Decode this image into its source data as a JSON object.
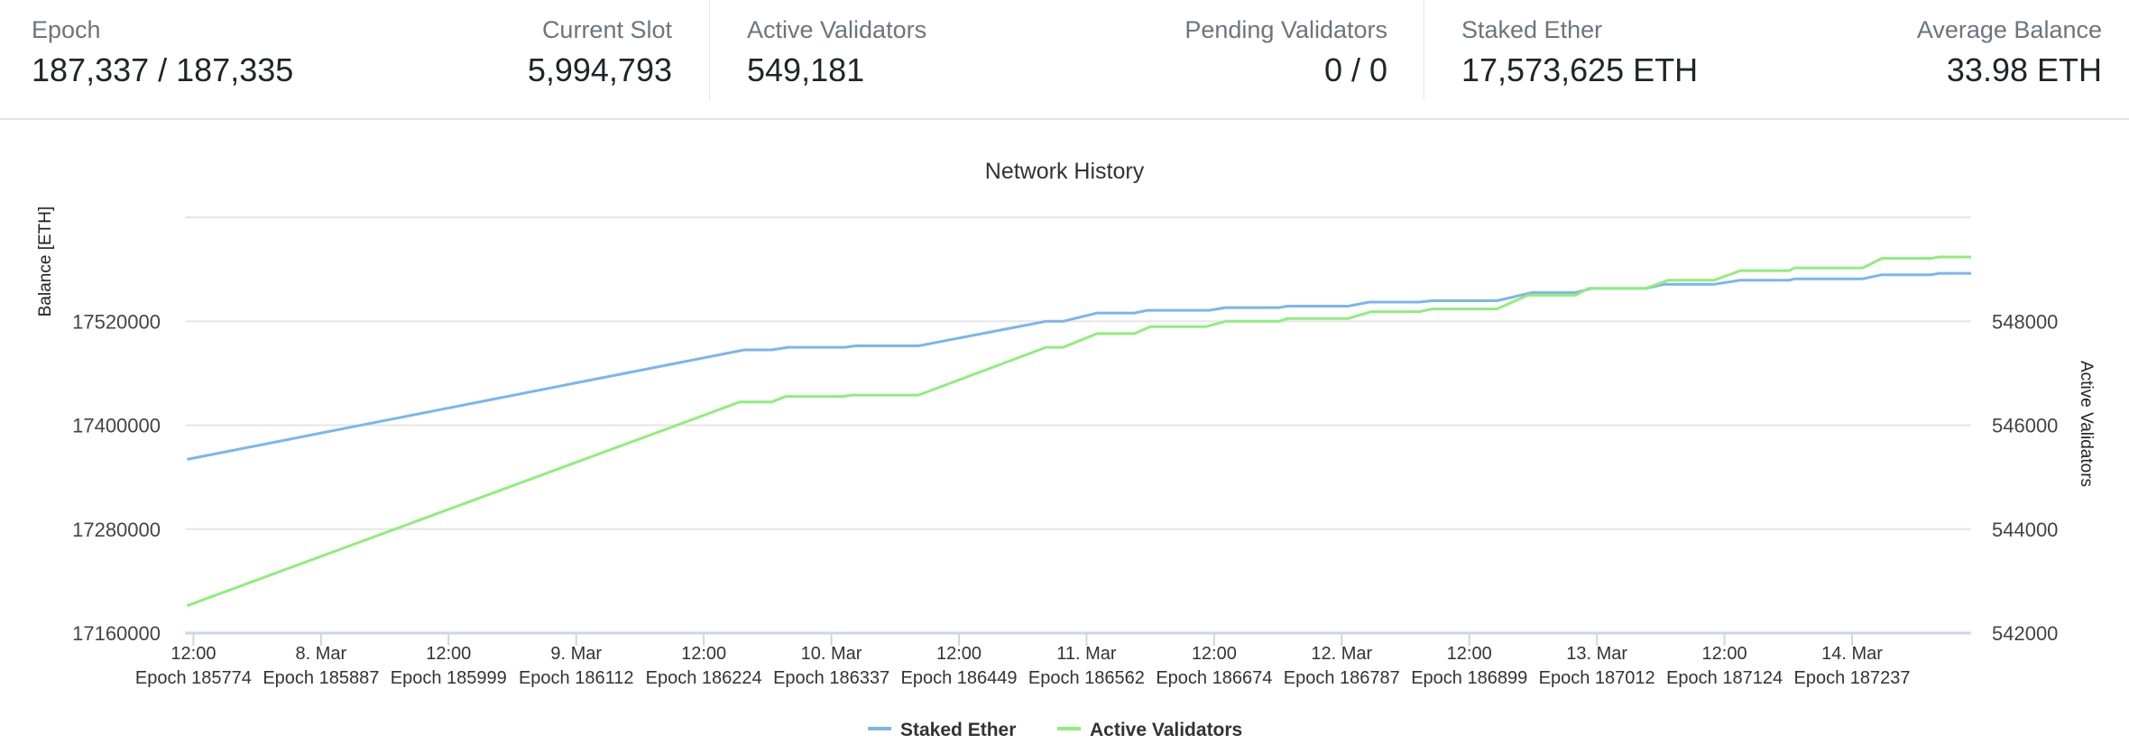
{
  "stats": {
    "epoch": {
      "label": "Epoch",
      "value": "187,337 / 187,335"
    },
    "current_slot": {
      "label": "Current Slot",
      "value": "5,994,793"
    },
    "active_validators": {
      "label": "Active Validators",
      "value": "549,181"
    },
    "pending_validators": {
      "label": "Pending Validators",
      "value": "0 / 0"
    },
    "staked_ether": {
      "label": "Staked Ether",
      "value": "17,573,625 ETH"
    },
    "average_balance": {
      "label": "Average Balance",
      "value": "33.98 ETH"
    }
  },
  "chart_data": {
    "type": "line",
    "title": "Network History",
    "x_unit": "hours since 7 Mar 00:00",
    "xlim": [
      11.2,
      179.2
    ],
    "x_ticks": [
      {
        "t": 12,
        "label": "12:00",
        "epoch": "Epoch 185774"
      },
      {
        "t": 24,
        "label": "8. Mar",
        "epoch": "Epoch 185887"
      },
      {
        "t": 36,
        "label": "12:00",
        "epoch": "Epoch 185999"
      },
      {
        "t": 48,
        "label": "9. Mar",
        "epoch": "Epoch 186112"
      },
      {
        "t": 60,
        "label": "12:00",
        "epoch": "Epoch 186224"
      },
      {
        "t": 72,
        "label": "10. Mar",
        "epoch": "Epoch 186337"
      },
      {
        "t": 84,
        "label": "12:00",
        "epoch": "Epoch 186449"
      },
      {
        "t": 96,
        "label": "11. Mar",
        "epoch": "Epoch 186562"
      },
      {
        "t": 108,
        "label": "12:00",
        "epoch": "Epoch 186674"
      },
      {
        "t": 120,
        "label": "12. Mar",
        "epoch": "Epoch 186787"
      },
      {
        "t": 132,
        "label": "12:00",
        "epoch": "Epoch 186899"
      },
      {
        "t": 144,
        "label": "13. Mar",
        "epoch": "Epoch 187012"
      },
      {
        "t": 156,
        "label": "12:00",
        "epoch": "Epoch 187124"
      },
      {
        "t": 168,
        "label": "14. Mar",
        "epoch": "Epoch 187237"
      }
    ],
    "y_left": {
      "label": "Balance [ETH]",
      "ylim": [
        17160000,
        17640000
      ],
      "ticks": [
        17160000,
        17280000,
        17400000,
        17520000
      ]
    },
    "y_right": {
      "label": "Active Validators",
      "ylim": [
        542000,
        550000
      ],
      "ticks": [
        542000,
        544000,
        546000,
        548000
      ]
    },
    "grid": true,
    "legend_position": "bottom-center",
    "series": [
      {
        "name": "Staked Ether",
        "axis": "left",
        "color": "#7cb5ec",
        "points": [
          [
            11.4,
            17360500
          ],
          [
            63.8,
            17486900
          ],
          [
            66.4,
            17486900
          ],
          [
            67.9,
            17490000
          ],
          [
            73.3,
            17490000
          ],
          [
            74.3,
            17491600
          ],
          [
            80.2,
            17491600
          ],
          [
            92.2,
            17520000
          ],
          [
            93.8,
            17520000
          ],
          [
            97.0,
            17529500
          ],
          [
            100.5,
            17529500
          ],
          [
            101.7,
            17532600
          ],
          [
            107.5,
            17532600
          ],
          [
            109.1,
            17535800
          ],
          [
            114.1,
            17535800
          ],
          [
            114.9,
            17537400
          ],
          [
            120.6,
            17537400
          ],
          [
            122.6,
            17542100
          ],
          [
            127.3,
            17542100
          ],
          [
            128.5,
            17543700
          ],
          [
            134.6,
            17543700
          ],
          [
            137.9,
            17553200
          ],
          [
            142.0,
            17553200
          ],
          [
            143.5,
            17557900
          ],
          [
            148.6,
            17557900
          ],
          [
            150.3,
            17562600
          ],
          [
            155.0,
            17562600
          ],
          [
            157.5,
            17567400
          ],
          [
            162.1,
            17567400
          ],
          [
            162.6,
            17569000
          ],
          [
            169.0,
            17569000
          ],
          [
            170.8,
            17573700
          ],
          [
            175.4,
            17573700
          ],
          [
            176.2,
            17575300
          ],
          [
            179.2,
            17575300
          ]
        ]
      },
      {
        "name": "Active Validators",
        "axis": "right",
        "color": "#90ed7d",
        "points": [
          [
            11.4,
            542526
          ],
          [
            63.4,
            546447
          ],
          [
            66.4,
            546447
          ],
          [
            67.7,
            546553
          ],
          [
            73.0,
            546553
          ],
          [
            73.9,
            546579
          ],
          [
            80.2,
            546579
          ],
          [
            92.2,
            547500
          ],
          [
            93.8,
            547500
          ],
          [
            97.0,
            547763
          ],
          [
            100.5,
            547763
          ],
          [
            102.0,
            547895
          ],
          [
            107.2,
            547895
          ],
          [
            109.1,
            548000
          ],
          [
            114.1,
            548000
          ],
          [
            114.9,
            548053
          ],
          [
            120.6,
            548053
          ],
          [
            122.8,
            548184
          ],
          [
            127.3,
            548184
          ],
          [
            128.5,
            548237
          ],
          [
            134.6,
            548237
          ],
          [
            137.5,
            548500
          ],
          [
            142.0,
            548500
          ],
          [
            143.2,
            548632
          ],
          [
            148.6,
            548632
          ],
          [
            150.7,
            548789
          ],
          [
            155.0,
            548789
          ],
          [
            157.5,
            548974
          ],
          [
            162.1,
            548974
          ],
          [
            162.6,
            549026
          ],
          [
            169.0,
            549026
          ],
          [
            170.8,
            549211
          ],
          [
            175.4,
            549211
          ],
          [
            176.2,
            549237
          ],
          [
            179.2,
            549237
          ]
        ]
      }
    ]
  }
}
